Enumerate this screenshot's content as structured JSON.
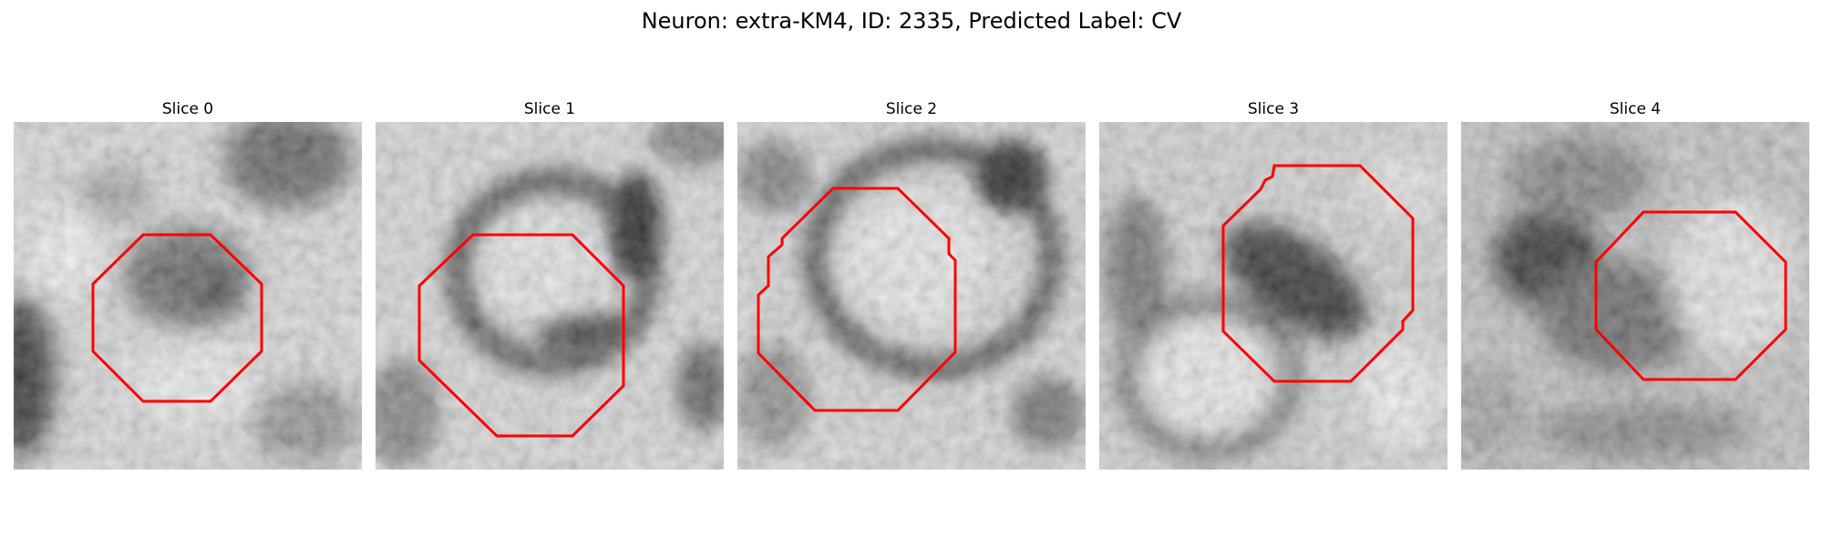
{
  "title": "Neuron: extra-KM4, ID: 2335, Predicted Label: CV",
  "overlay_color": "#ff0000",
  "slices": [
    {
      "label": "Slice 0"
    },
    {
      "label": "Slice 1"
    },
    {
      "label": "Slice 2"
    },
    {
      "label": "Slice 3"
    },
    {
      "label": "Slice 4"
    }
  ]
}
